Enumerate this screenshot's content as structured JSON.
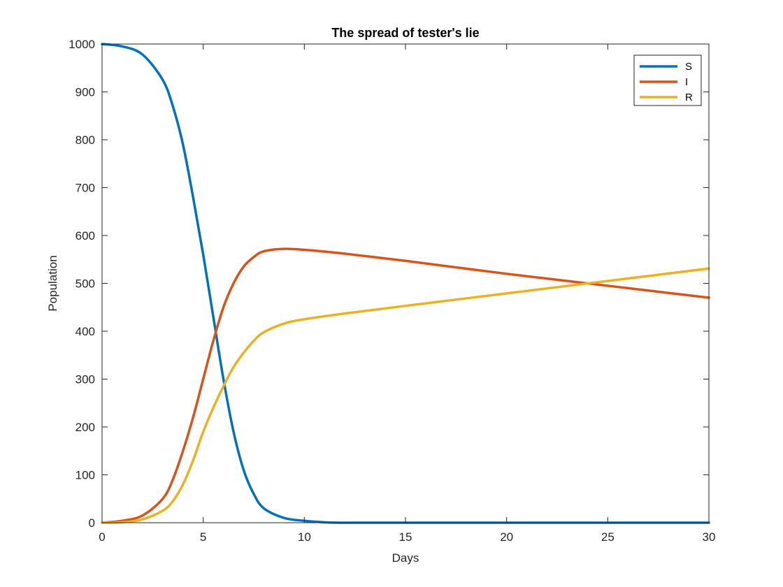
{
  "chart_data": {
    "type": "line",
    "title": "The spread of tester's lie",
    "xlabel": "Days",
    "ylabel": "Population",
    "xlim": [
      0,
      30
    ],
    "ylim": [
      0,
      1000
    ],
    "xticks": [
      0,
      5,
      10,
      15,
      20,
      25,
      30
    ],
    "yticks": [
      0,
      100,
      200,
      300,
      400,
      500,
      600,
      700,
      800,
      900,
      1000
    ],
    "grid": false,
    "legend_position": "top-right",
    "series": [
      {
        "name": "S",
        "color": "#0072BD",
        "x": [
          0,
          1,
          2,
          3,
          3.5,
          4,
          4.5,
          5,
          5.5,
          6,
          6.5,
          7,
          7.5,
          8,
          9,
          10,
          11,
          12,
          15,
          20,
          25,
          30
        ],
        "y": [
          1000,
          995,
          978,
          925,
          870,
          790,
          680,
          560,
          430,
          300,
          190,
          110,
          60,
          30,
          10,
          4,
          1,
          0,
          0,
          0,
          0,
          0
        ]
      },
      {
        "name": "I",
        "color": "#D95319",
        "x": [
          0,
          1,
          2,
          3,
          3.5,
          4,
          4.5,
          5,
          5.5,
          6,
          6.5,
          7,
          7.5,
          8,
          9,
          10,
          12,
          15,
          20,
          25,
          30
        ],
        "y": [
          0,
          4,
          15,
          50,
          90,
          150,
          220,
          300,
          380,
          450,
          500,
          535,
          555,
          567,
          572,
          570,
          562,
          547,
          520,
          495,
          470
        ]
      },
      {
        "name": "R",
        "color": "#EDB120",
        "x": [
          0,
          1,
          2,
          3,
          3.5,
          4,
          4.5,
          5,
          5.5,
          6,
          6.5,
          7,
          7.5,
          8,
          9,
          10,
          12,
          15,
          20,
          25,
          30
        ],
        "y": [
          0,
          1,
          7,
          25,
          45,
          80,
          130,
          190,
          240,
          285,
          325,
          355,
          380,
          398,
          416,
          425,
          437,
          453,
          479,
          505,
          531
        ]
      }
    ]
  }
}
